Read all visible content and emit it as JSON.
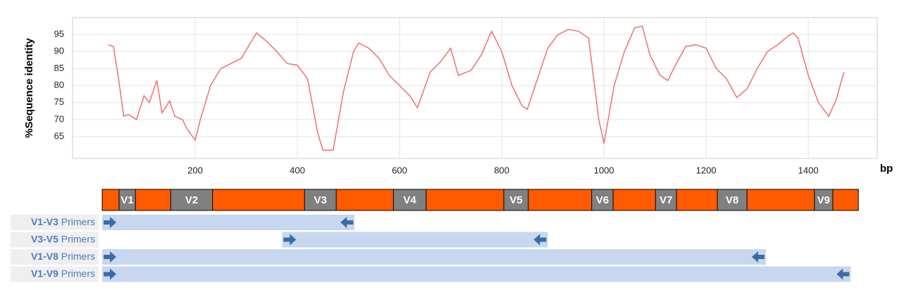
{
  "chart_data": {
    "type": "line",
    "y_label": "%Sequence identity",
    "x_label": "bp",
    "x": [
      30,
      40,
      50,
      60,
      70,
      85,
      100,
      110,
      125,
      135,
      150,
      160,
      175,
      185,
      200,
      210,
      230,
      250,
      270,
      290,
      320,
      340,
      360,
      380,
      400,
      420,
      440,
      450,
      470,
      490,
      510,
      520,
      540,
      560,
      580,
      600,
      620,
      635,
      660,
      680,
      700,
      715,
      740,
      760,
      780,
      800,
      820,
      840,
      850,
      870,
      890,
      910,
      930,
      950,
      970,
      990,
      1000,
      1020,
      1040,
      1060,
      1075,
      1090,
      1110,
      1125,
      1140,
      1160,
      1180,
      1200,
      1220,
      1240,
      1260,
      1280,
      1300,
      1320,
      1340,
      1360,
      1370,
      1380,
      1400,
      1420,
      1440,
      1455,
      1465,
      1470
    ],
    "series": [
      {
        "color": "#f07070",
        "values": [
          92,
          91.5,
          82,
          71,
          71.5,
          70,
          77,
          75,
          81.5,
          72,
          75.5,
          71,
          70,
          67,
          64,
          70,
          80,
          85,
          86.5,
          88,
          95.5,
          93,
          90,
          86.5,
          86,
          82,
          66,
          61,
          61,
          78,
          90,
          92.5,
          91,
          88,
          83,
          80,
          77,
          73.5,
          84,
          87,
          91,
          83,
          84.5,
          89,
          96,
          90,
          80,
          74,
          73,
          82,
          91,
          95,
          96.5,
          96,
          94,
          70,
          63,
          80,
          90,
          97,
          97.5,
          89,
          83,
          81.5,
          86,
          91.5,
          92,
          91,
          85,
          82,
          76.5,
          79,
          85,
          90,
          92,
          94.5,
          95.5,
          94,
          83,
          75,
          71,
          76,
          81.5,
          84
        ]
      }
    ],
    "xlim": [
      -40,
      1535
    ],
    "ylim": [
      58.6,
      100
    ],
    "xticks": [
      200,
      400,
      600,
      800,
      1000,
      1200,
      1400
    ],
    "yticks": [
      65,
      70,
      75,
      80,
      85,
      90,
      95
    ],
    "grid": true
  },
  "gene_map": {
    "start": 18,
    "end": 1498,
    "color": "#ff5a00",
    "region_color": "#808080",
    "primer_color": "#c6d7ef",
    "arrow_color": "#3d6aa3",
    "regions": [
      {
        "label": "V1",
        "start": 51,
        "end": 83
      },
      {
        "label": "V2",
        "start": 152,
        "end": 234
      },
      {
        "label": "V3",
        "start": 414,
        "end": 476
      },
      {
        "label": "V4",
        "start": 588,
        "end": 652
      },
      {
        "label": "V5",
        "start": 804,
        "end": 852
      },
      {
        "label": "V6",
        "start": 976,
        "end": 1018
      },
      {
        "label": "V7",
        "start": 1101,
        "end": 1142
      },
      {
        "label": "V8",
        "start": 1222,
        "end": 1280
      },
      {
        "label": "V9",
        "start": 1412,
        "end": 1448
      }
    ],
    "primers": [
      {
        "name": "V1-V3",
        "suffix": "Primers",
        "start": 18,
        "end": 512
      },
      {
        "name": "V3-V5",
        "suffix": "Primers",
        "start": 370,
        "end": 890
      },
      {
        "name": "V1-V8",
        "suffix": "Primers",
        "start": 18,
        "end": 1317
      },
      {
        "name": "V1-V9",
        "suffix": "Primers",
        "start": 18,
        "end": 1483
      }
    ]
  }
}
